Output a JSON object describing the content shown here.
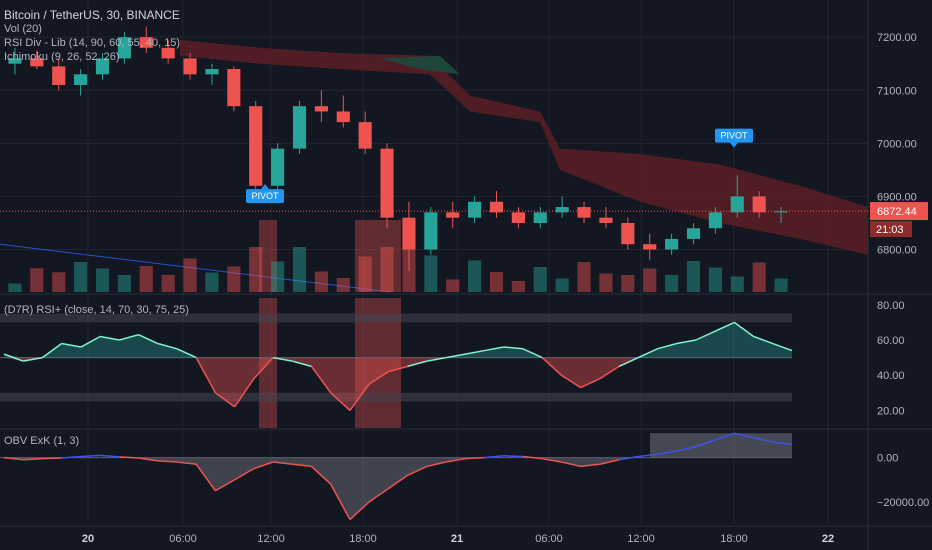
{
  "header": {
    "symbol_line": "Bitcoin / TetherUS, 30, BINANCE",
    "indicators": [
      "Vol (20)",
      "RSI Div - Lib (14, 90, 60, 55, 40, 15)",
      "Ichimoku (9, 26, 52, 26)"
    ]
  },
  "panes": {
    "rsi_title": "(D7R) RSI+ (close, 14, 70, 30, 75, 25)",
    "obv_title": "OBV ExK (1, 3)"
  },
  "price_axis": {
    "ticks": [
      "7200.00",
      "7100.00",
      "7000.00",
      "6900.00",
      "6800.00"
    ],
    "last_price": "6872.44",
    "countdown": "21:03"
  },
  "rsi_axis": {
    "ticks": [
      "80.00",
      "60.00",
      "40.00",
      "20.00"
    ]
  },
  "obv_axis": {
    "ticks": [
      "0.00",
      "−20000.00"
    ]
  },
  "time_axis": {
    "ticks": [
      "20",
      "06:00",
      "12:00",
      "18:00",
      "21",
      "06:00",
      "12:00",
      "18:00",
      "22"
    ]
  },
  "pivot_labels": [
    "PIVOT",
    "PIVOT"
  ],
  "colors": {
    "background": "#131722",
    "up": "#26a69a",
    "down": "#ef5350",
    "rsi_line": "#7ff2d0",
    "obv_line": "#ef5350",
    "obv_positive": "#3d52f0",
    "pivot": "#2196f3",
    "cloud_bear": "#5c1f26",
    "cloud_bull": "#1b4a3e"
  },
  "chart_data": {
    "type": "candlestick",
    "title": "Bitcoin / TetherUS, 30, BINANCE",
    "y_range": [
      6720,
      7270
    ],
    "last_price": 6872.44,
    "candles_sampled": [
      [
        7150,
        7180,
        7130,
        7160
      ],
      [
        7160,
        7175,
        7140,
        7145
      ],
      [
        7145,
        7160,
        7100,
        7110
      ],
      [
        7110,
        7140,
        7090,
        7130
      ],
      [
        7130,
        7170,
        7120,
        7160
      ],
      [
        7160,
        7210,
        7150,
        7200
      ],
      [
        7200,
        7220,
        7170,
        7180
      ],
      [
        7180,
        7195,
        7150,
        7160
      ],
      [
        7160,
        7170,
        7120,
        7130
      ],
      [
        7130,
        7150,
        7110,
        7140
      ],
      [
        7140,
        7145,
        7060,
        7070
      ],
      [
        7070,
        7080,
        6910,
        6920
      ],
      [
        6920,
        7000,
        6900,
        6990
      ],
      [
        6990,
        7080,
        6980,
        7070
      ],
      [
        7070,
        7100,
        7040,
        7060
      ],
      [
        7060,
        7090,
        7030,
        7040
      ],
      [
        7040,
        7060,
        6980,
        6990
      ],
      [
        6990,
        7000,
        6840,
        6860
      ],
      [
        6860,
        6890,
        6760,
        6800
      ],
      [
        6800,
        6880,
        6790,
        6870
      ],
      [
        6870,
        6890,
        6840,
        6860
      ],
      [
        6860,
        6900,
        6850,
        6890
      ],
      [
        6890,
        6910,
        6860,
        6870
      ],
      [
        6870,
        6880,
        6840,
        6850
      ],
      [
        6850,
        6880,
        6840,
        6870
      ],
      [
        6870,
        6900,
        6860,
        6880
      ],
      [
        6880,
        6890,
        6850,
        6860
      ],
      [
        6860,
        6880,
        6840,
        6850
      ],
      [
        6850,
        6860,
        6800,
        6810
      ],
      [
        6810,
        6830,
        6780,
        6800
      ],
      [
        6800,
        6830,
        6790,
        6820
      ],
      [
        6820,
        6850,
        6810,
        6840
      ],
      [
        6840,
        6880,
        6830,
        6870
      ],
      [
        6870,
        6940,
        6860,
        6900
      ],
      [
        6900,
        6910,
        6860,
        6870
      ],
      [
        6870,
        6880,
        6850,
        6872
      ]
    ],
    "pivots": [
      6925,
      6990
    ],
    "rsi": {
      "ylim": [
        10,
        85
      ],
      "levels": [
        75,
        70,
        30,
        25
      ],
      "values": [
        52,
        48,
        50,
        58,
        56,
        62,
        60,
        63,
        58,
        55,
        50,
        30,
        22,
        38,
        50,
        48,
        45,
        30,
        20,
        35,
        42,
        45,
        48,
        50,
        52,
        54,
        56,
        55,
        50,
        40,
        33,
        38,
        45,
        50,
        55,
        58,
        60,
        65,
        70,
        62,
        58,
        54
      ]
    },
    "obv": {
      "ylim": [
        -30000,
        12000
      ],
      "values": [
        0,
        -1000,
        -500,
        -200,
        500,
        1000,
        300,
        -200,
        -1500,
        -2000,
        -3000,
        -15000,
        -10000,
        -5000,
        -2000,
        -3000,
        -4000,
        -12000,
        -28000,
        -20000,
        -14000,
        -8000,
        -4000,
        -2000,
        -500,
        0,
        800,
        500,
        -500,
        -2000,
        -4000,
        -3000,
        -1000,
        500,
        1500,
        3000,
        5000,
        8000,
        11000,
        9000,
        7000,
        6000
      ]
    }
  }
}
